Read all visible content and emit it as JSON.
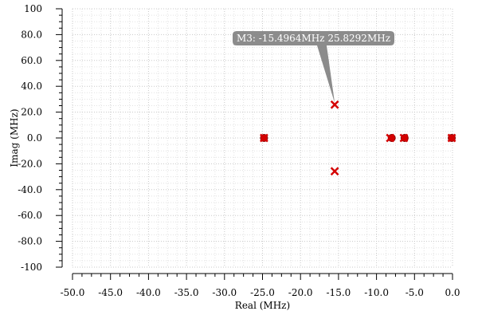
{
  "chart_data": {
    "type": "scatter",
    "xlabel": "Real (MHz)",
    "ylabel": "Imag (MHz)",
    "xlim": [
      -50,
      0
    ],
    "ylim": [
      -100,
      100
    ],
    "x_ticks": [
      "-50.0",
      "-45.0",
      "-40.0",
      "-35.0",
      "-30.0",
      "-25.0",
      "-20.0",
      "-15.0",
      "-10.0",
      "-5.0",
      "0.0"
    ],
    "y_ticks": [
      "100",
      "80.0",
      "60.0",
      "40.0",
      "20.0",
      "0.0",
      "-20.0",
      "-40.0",
      "-60.0",
      "-80.0",
      "-100"
    ],
    "grid": true,
    "series": [
      {
        "marker": "o",
        "color": "#d40000",
        "points": [
          [
            -24.8,
            0
          ],
          [
            -8.0,
            0
          ],
          [
            -6.3,
            0
          ],
          [
            -0.1,
            0
          ]
        ]
      },
      {
        "marker": "x",
        "color": "#d40000",
        "points": [
          [
            -15.5,
            25.8
          ],
          [
            -15.5,
            -25.8
          ],
          [
            -24.8,
            0
          ],
          [
            -8.2,
            0
          ],
          [
            -6.4,
            0
          ],
          [
            -0.1,
            0
          ]
        ]
      }
    ],
    "annotation": {
      "text": "M3: -15.4964MHz 25.8292MHz",
      "x": -15.4964,
      "y": 25.8292,
      "color": "#808080"
    }
  }
}
